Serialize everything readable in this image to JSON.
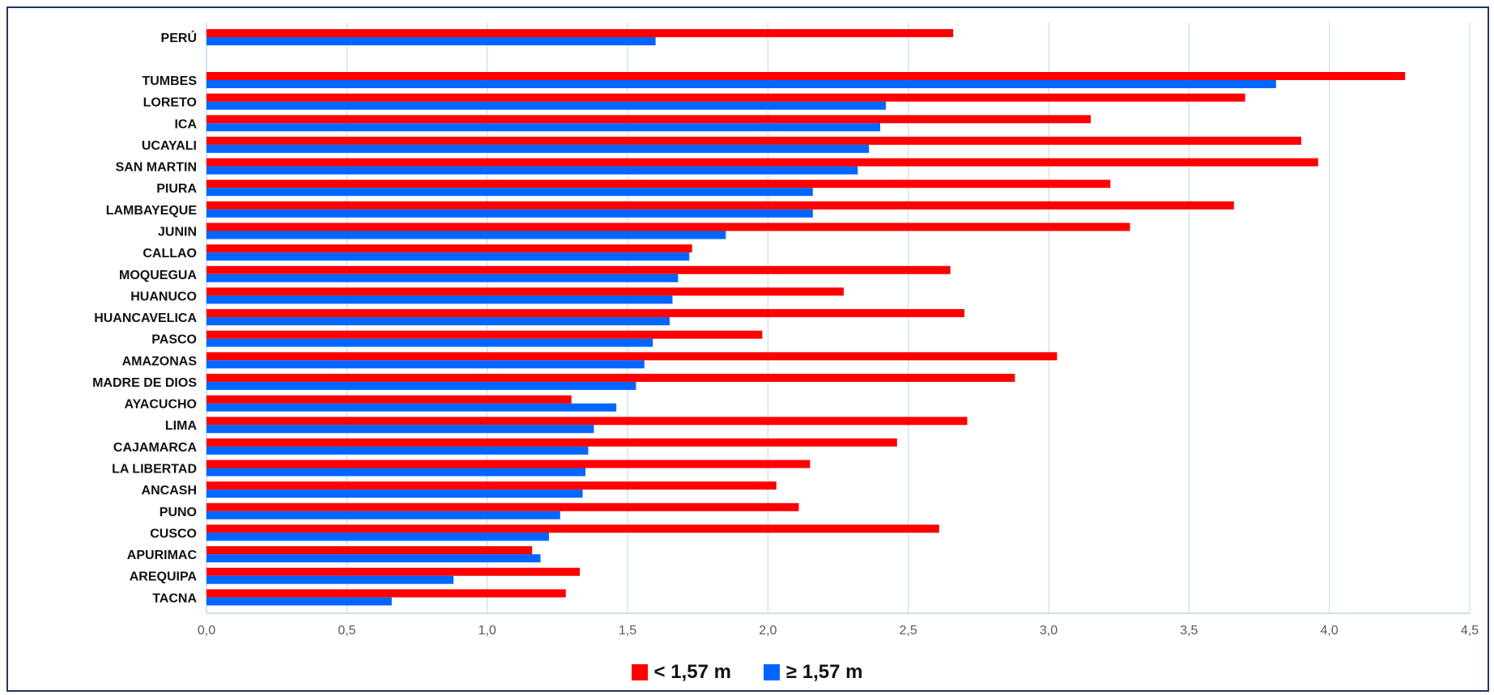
{
  "chart_data": {
    "type": "bar",
    "orientation": "horizontal",
    "categories": [
      "PERÚ",
      "TUMBES",
      "LORETO",
      "ICA",
      "UCAYALI",
      "SAN MARTIN",
      "PIURA",
      "LAMBAYEQUE",
      "JUNIN",
      "CALLAO",
      "MOQUEGUA",
      "HUANUCO",
      "HUANCAVELICA",
      "PASCO",
      "AMAZONAS",
      "MADRE DE DIOS",
      "AYACUCHO",
      "LIMA",
      "CAJAMARCA",
      "LA LIBERTAD",
      "ANCASH",
      "PUNO",
      "CUSCO",
      "APURIMAC",
      "AREQUIPA",
      "TACNA"
    ],
    "series": [
      {
        "name": "< 1,57 m",
        "color": "#ff0000",
        "values": [
          2.66,
          4.27,
          3.7,
          3.15,
          3.9,
          3.96,
          3.22,
          3.66,
          3.29,
          1.73,
          2.65,
          2.27,
          2.7,
          1.98,
          3.03,
          2.88,
          1.3,
          2.71,
          2.46,
          2.15,
          2.03,
          2.11,
          2.61,
          1.16,
          1.33,
          1.28
        ]
      },
      {
        "name": "≥ 1,57 m",
        "color": "#0066ff",
        "values": [
          1.6,
          3.81,
          2.42,
          2.4,
          2.36,
          2.32,
          2.16,
          2.16,
          1.85,
          1.72,
          1.68,
          1.66,
          1.65,
          1.59,
          1.56,
          1.53,
          1.46,
          1.38,
          1.36,
          1.35,
          1.34,
          1.26,
          1.22,
          1.19,
          0.88,
          0.66
        ]
      }
    ],
    "x_ticks": [
      "0,0",
      "0,5",
      "1,0",
      "1,5",
      "2,0",
      "2,5",
      "3,0",
      "3,5",
      "4,0",
      "4,5"
    ],
    "xlim": [
      0,
      4.5
    ],
    "grid": true,
    "legend_position": "bottom-center"
  }
}
